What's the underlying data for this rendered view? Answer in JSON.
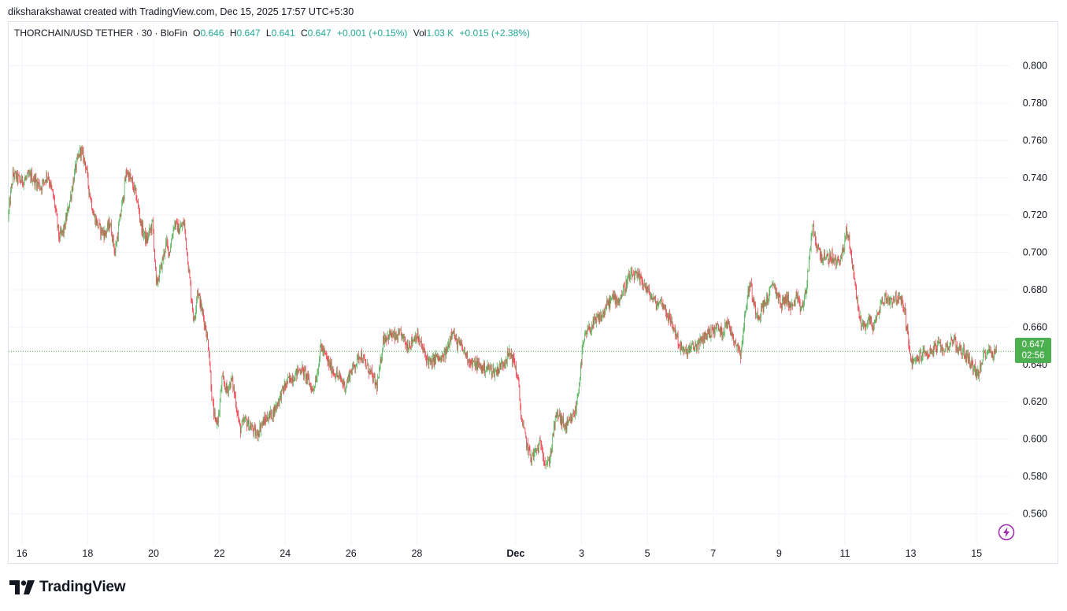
{
  "caption": "diksharakshawat created with TradingView.com, Dec 15, 2025 17:57 UTC+5:30",
  "legend": {
    "symbol": "THORCHAIN/USD TETHER · 30 · BloFin",
    "o_label": "O",
    "o_value": "0.646",
    "h_label": "H",
    "h_value": "0.647",
    "l_label": "L",
    "l_value": "0.641",
    "c_label": "C",
    "c_value": "0.647",
    "change": "+0.001 (+0.15%)",
    "vol_label": "Vol",
    "vol_value": "1.03 K",
    "vol_change": "+0.015 (+2.38%)"
  },
  "price_tag": {
    "price": "0.647",
    "countdown": "02:56"
  },
  "brand": "TradingView",
  "colors": {
    "up": "#4caf50",
    "down": "#f23645",
    "legend_green": "#22ab94",
    "grid": "#f0f3fa"
  },
  "chart_data": {
    "type": "candlestick",
    "title": "THORCHAIN/USD TETHER · 30 · BloFin",
    "interval": "30",
    "ylim": [
      0.545,
      0.815
    ],
    "xlim": [
      15.6,
      46.0
    ],
    "y_ticks": [
      0.8,
      0.78,
      0.76,
      0.74,
      0.72,
      0.7,
      0.68,
      0.66,
      0.64,
      0.62,
      0.6,
      0.58,
      0.56
    ],
    "y_tick_labels": [
      "0.800",
      "0.780",
      "0.760",
      "0.740",
      "0.720",
      "0.700",
      "0.680",
      "0.660",
      "0.640",
      "0.620",
      "0.600",
      "0.580",
      "0.560"
    ],
    "x_ticks": [
      {
        "day": 16,
        "label": "16"
      },
      {
        "day": 18,
        "label": "18"
      },
      {
        "day": 20,
        "label": "20"
      },
      {
        "day": 22,
        "label": "22"
      },
      {
        "day": 24,
        "label": "24"
      },
      {
        "day": 26,
        "label": "26"
      },
      {
        "day": 28,
        "label": "28"
      },
      {
        "day": 31,
        "label": "Dec"
      },
      {
        "day": 33,
        "label": "3"
      },
      {
        "day": 35,
        "label": "5"
      },
      {
        "day": 37,
        "label": "7"
      },
      {
        "day": 39,
        "label": "9"
      },
      {
        "day": 41,
        "label": "11"
      },
      {
        "day": 43,
        "label": "13"
      },
      {
        "day": 45,
        "label": "15"
      }
    ],
    "last_price": 0.647,
    "path_note": "approximate close path; day = days since Nov 0 (Dec 1 = 31)",
    "path": [
      [
        15.6,
        0.718
      ],
      [
        15.75,
        0.742
      ],
      [
        16.0,
        0.738
      ],
      [
        16.3,
        0.741
      ],
      [
        16.6,
        0.735
      ],
      [
        16.8,
        0.742
      ],
      [
        17.0,
        0.728
      ],
      [
        17.15,
        0.708
      ],
      [
        17.3,
        0.712
      ],
      [
        17.5,
        0.73
      ],
      [
        17.65,
        0.745
      ],
      [
        17.8,
        0.755
      ],
      [
        17.95,
        0.748
      ],
      [
        18.05,
        0.735
      ],
      [
        18.2,
        0.72
      ],
      [
        18.4,
        0.712
      ],
      [
        18.55,
        0.71
      ],
      [
        18.7,
        0.716
      ],
      [
        18.85,
        0.7
      ],
      [
        18.95,
        0.712
      ],
      [
        19.1,
        0.73
      ],
      [
        19.2,
        0.744
      ],
      [
        19.35,
        0.738
      ],
      [
        19.5,
        0.73
      ],
      [
        19.65,
        0.714
      ],
      [
        19.8,
        0.706
      ],
      [
        20.0,
        0.716
      ],
      [
        20.05,
        0.7
      ],
      [
        20.1,
        0.682
      ],
      [
        20.25,
        0.692
      ],
      [
        20.4,
        0.705
      ],
      [
        20.5,
        0.7
      ],
      [
        20.65,
        0.716
      ],
      [
        20.8,
        0.712
      ],
      [
        20.95,
        0.716
      ],
      [
        21.05,
        0.698
      ],
      [
        21.15,
        0.68
      ],
      [
        21.25,
        0.662
      ],
      [
        21.35,
        0.68
      ],
      [
        21.5,
        0.668
      ],
      [
        21.6,
        0.66
      ],
      [
        21.7,
        0.648
      ],
      [
        21.8,
        0.62
      ],
      [
        21.9,
        0.608
      ],
      [
        22.0,
        0.612
      ],
      [
        22.1,
        0.632
      ],
      [
        22.25,
        0.626
      ],
      [
        22.4,
        0.632
      ],
      [
        22.5,
        0.622
      ],
      [
        22.65,
        0.605
      ],
      [
        22.8,
        0.61
      ],
      [
        23.0,
        0.606
      ],
      [
        23.15,
        0.602
      ],
      [
        23.3,
        0.608
      ],
      [
        23.5,
        0.612
      ],
      [
        23.65,
        0.614
      ],
      [
        23.85,
        0.622
      ],
      [
        24.0,
        0.628
      ],
      [
        24.15,
        0.632
      ],
      [
        24.3,
        0.634
      ],
      [
        24.5,
        0.638
      ],
      [
        24.65,
        0.634
      ],
      [
        24.75,
        0.63
      ],
      [
        24.85,
        0.626
      ],
      [
        25.0,
        0.636
      ],
      [
        25.1,
        0.65
      ],
      [
        25.2,
        0.646
      ],
      [
        25.35,
        0.64
      ],
      [
        25.5,
        0.636
      ],
      [
        25.7,
        0.632
      ],
      [
        25.85,
        0.628
      ],
      [
        26.0,
        0.636
      ],
      [
        26.15,
        0.64
      ],
      [
        26.3,
        0.646
      ],
      [
        26.45,
        0.64
      ],
      [
        26.6,
        0.636
      ],
      [
        26.8,
        0.628
      ],
      [
        26.9,
        0.638
      ],
      [
        27.0,
        0.654
      ],
      [
        27.2,
        0.656
      ],
      [
        27.4,
        0.654
      ],
      [
        27.55,
        0.656
      ],
      [
        27.7,
        0.65
      ],
      [
        27.85,
        0.652
      ],
      [
        28.0,
        0.656
      ],
      [
        28.15,
        0.65
      ],
      [
        28.3,
        0.644
      ],
      [
        28.45,
        0.64
      ],
      [
        28.6,
        0.644
      ],
      [
        28.75,
        0.642
      ],
      [
        28.9,
        0.646
      ],
      [
        29.0,
        0.652
      ],
      [
        29.1,
        0.66
      ],
      [
        29.2,
        0.652
      ],
      [
        29.35,
        0.65
      ],
      [
        29.55,
        0.644
      ],
      [
        29.7,
        0.64
      ],
      [
        29.85,
        0.64
      ],
      [
        30.0,
        0.638
      ],
      [
        30.2,
        0.638
      ],
      [
        30.4,
        0.636
      ],
      [
        30.6,
        0.64
      ],
      [
        30.75,
        0.644
      ],
      [
        30.85,
        0.646
      ],
      [
        31.0,
        0.64
      ],
      [
        31.1,
        0.63
      ],
      [
        31.2,
        0.61
      ],
      [
        31.3,
        0.602
      ],
      [
        31.4,
        0.594
      ],
      [
        31.5,
        0.59
      ],
      [
        31.65,
        0.594
      ],
      [
        31.8,
        0.598
      ],
      [
        31.9,
        0.588
      ],
      [
        32.0,
        0.586
      ],
      [
        32.1,
        0.594
      ],
      [
        32.2,
        0.608
      ],
      [
        32.3,
        0.614
      ],
      [
        32.4,
        0.61
      ],
      [
        32.55,
        0.606
      ],
      [
        32.7,
        0.61
      ],
      [
        32.85,
        0.616
      ],
      [
        32.95,
        0.63
      ],
      [
        33.05,
        0.648
      ],
      [
        33.15,
        0.656
      ],
      [
        33.3,
        0.66
      ],
      [
        33.5,
        0.664
      ],
      [
        33.65,
        0.666
      ],
      [
        33.8,
        0.672
      ],
      [
        34.0,
        0.676
      ],
      [
        34.15,
        0.674
      ],
      [
        34.3,
        0.68
      ],
      [
        34.45,
        0.686
      ],
      [
        34.6,
        0.688
      ],
      [
        34.75,
        0.686
      ],
      [
        34.9,
        0.684
      ],
      [
        35.0,
        0.68
      ],
      [
        35.15,
        0.676
      ],
      [
        35.3,
        0.672
      ],
      [
        35.45,
        0.674
      ],
      [
        35.6,
        0.668
      ],
      [
        35.75,
        0.662
      ],
      [
        35.9,
        0.656
      ],
      [
        36.0,
        0.65
      ],
      [
        36.15,
        0.646
      ],
      [
        36.3,
        0.648
      ],
      [
        36.5,
        0.65
      ],
      [
        36.65,
        0.652
      ],
      [
        36.8,
        0.656
      ],
      [
        37.0,
        0.658
      ],
      [
        37.15,
        0.66
      ],
      [
        37.3,
        0.656
      ],
      [
        37.4,
        0.664
      ],
      [
        37.5,
        0.66
      ],
      [
        37.6,
        0.656
      ],
      [
        37.75,
        0.65
      ],
      [
        37.85,
        0.646
      ],
      [
        37.95,
        0.66
      ],
      [
        38.05,
        0.676
      ],
      [
        38.15,
        0.684
      ],
      [
        38.25,
        0.672
      ],
      [
        38.4,
        0.666
      ],
      [
        38.55,
        0.672
      ],
      [
        38.7,
        0.676
      ],
      [
        38.85,
        0.684
      ],
      [
        38.95,
        0.678
      ],
      [
        39.1,
        0.672
      ],
      [
        39.25,
        0.676
      ],
      [
        39.4,
        0.67
      ],
      [
        39.55,
        0.676
      ],
      [
        39.65,
        0.67
      ],
      [
        39.75,
        0.672
      ],
      [
        39.85,
        0.68
      ],
      [
        39.95,
        0.7
      ],
      [
        40.05,
        0.714
      ],
      [
        40.15,
        0.704
      ],
      [
        40.3,
        0.698
      ],
      [
        40.45,
        0.696
      ],
      [
        40.6,
        0.698
      ],
      [
        40.75,
        0.694
      ],
      [
        40.9,
        0.698
      ],
      [
        41.0,
        0.702
      ],
      [
        41.05,
        0.712
      ],
      [
        41.15,
        0.706
      ],
      [
        41.25,
        0.694
      ],
      [
        41.35,
        0.68
      ],
      [
        41.45,
        0.666
      ],
      [
        41.6,
        0.66
      ],
      [
        41.75,
        0.664
      ],
      [
        41.9,
        0.66
      ],
      [
        42.0,
        0.666
      ],
      [
        42.1,
        0.672
      ],
      [
        42.25,
        0.676
      ],
      [
        42.4,
        0.674
      ],
      [
        42.55,
        0.676
      ],
      [
        42.7,
        0.674
      ],
      [
        42.8,
        0.672
      ],
      [
        42.9,
        0.66
      ],
      [
        43.0,
        0.644
      ],
      [
        43.1,
        0.64
      ],
      [
        43.25,
        0.644
      ],
      [
        43.4,
        0.646
      ],
      [
        43.55,
        0.646
      ],
      [
        43.7,
        0.648
      ],
      [
        43.85,
        0.65
      ],
      [
        44.0,
        0.648
      ],
      [
        44.15,
        0.65
      ],
      [
        44.3,
        0.654
      ],
      [
        44.4,
        0.65
      ],
      [
        44.5,
        0.648
      ],
      [
        44.65,
        0.646
      ],
      [
        44.8,
        0.642
      ],
      [
        44.95,
        0.638
      ],
      [
        45.05,
        0.634
      ],
      [
        45.15,
        0.638
      ],
      [
        45.25,
        0.646
      ],
      [
        45.35,
        0.648
      ],
      [
        45.5,
        0.646
      ],
      [
        45.6,
        0.647
      ]
    ]
  }
}
